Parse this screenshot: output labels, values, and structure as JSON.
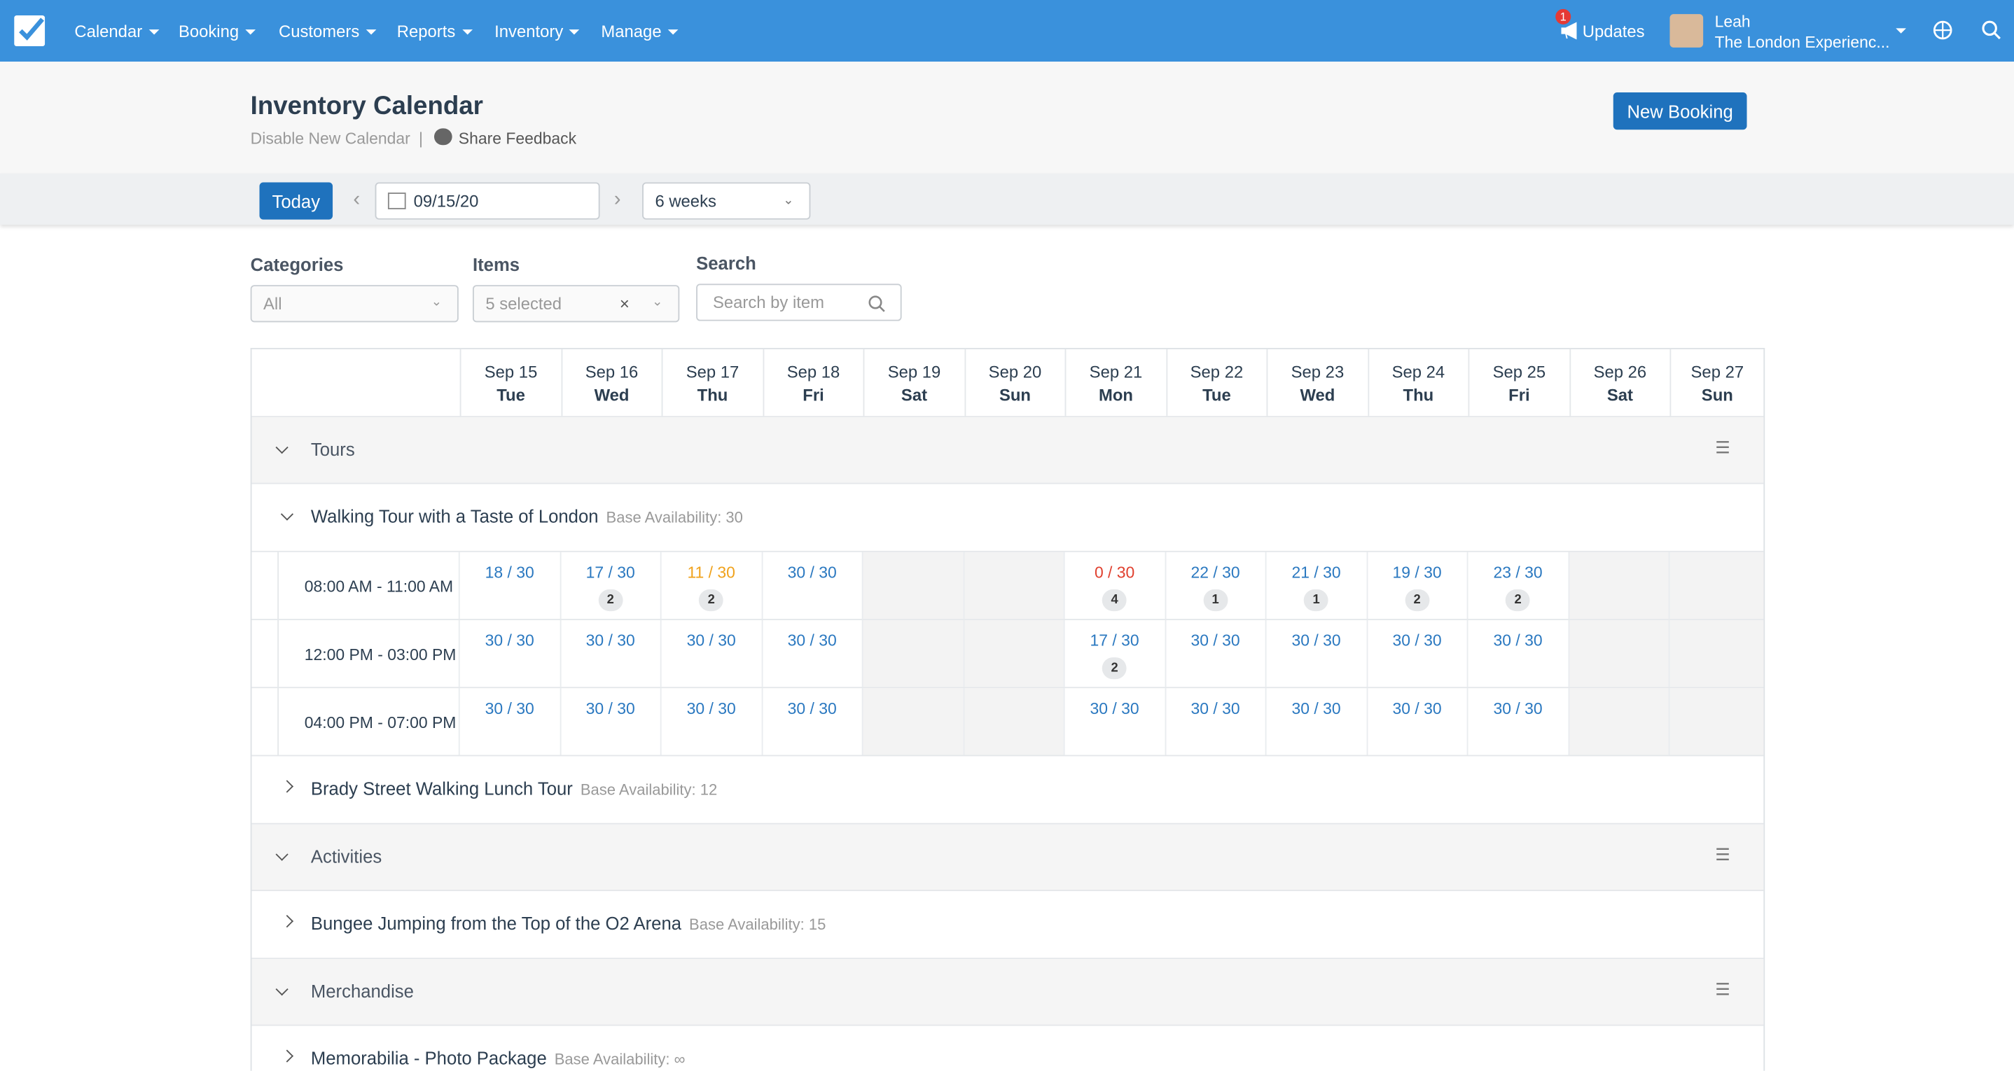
{
  "nav": {
    "menu": [
      "Calendar",
      "Booking",
      "Customers",
      "Reports",
      "Inventory",
      "Manage"
    ],
    "updates_badge": "1",
    "updates": "Updates",
    "user_name": "Leah",
    "user_company": "The London Experienc..."
  },
  "header": {
    "title": "Inventory Calendar",
    "disable": "Disable New Calendar",
    "separator": "|",
    "feedback": "Share Feedback",
    "new_booking": "New Booking"
  },
  "toolbar": {
    "today": "Today",
    "date": "09/15/20",
    "range": "6 weeks"
  },
  "filters": {
    "categories_label": "Categories",
    "categories_value": "All",
    "items_label": "Items",
    "items_value": "5 selected",
    "search_label": "Search",
    "search_placeholder": "Search by item"
  },
  "days": [
    {
      "date": "Sep 15",
      "weekday": "Tue"
    },
    {
      "date": "Sep 16",
      "weekday": "Wed"
    },
    {
      "date": "Sep 17",
      "weekday": "Thu"
    },
    {
      "date": "Sep 18",
      "weekday": "Fri"
    },
    {
      "date": "Sep 19",
      "weekday": "Sat"
    },
    {
      "date": "Sep 20",
      "weekday": "Sun"
    },
    {
      "date": "Sep 21",
      "weekday": "Mon"
    },
    {
      "date": "Sep 22",
      "weekday": "Tue"
    },
    {
      "date": "Sep 23",
      "weekday": "Wed"
    },
    {
      "date": "Sep 24",
      "weekday": "Thu"
    },
    {
      "date": "Sep 25",
      "weekday": "Fri"
    },
    {
      "date": "Sep 26",
      "weekday": "Sat"
    },
    {
      "date": "Sep 27",
      "weekday": "Sun"
    }
  ],
  "groups": [
    {
      "name": "Tours",
      "items": [
        {
          "name": "Walking Tour with a Taste of London",
          "base": "Base Availability: 30",
          "slots": [
            {
              "time": "08:00 AM - 11:00 AM",
              "cells": [
                {
                  "text": "18 / 30"
                },
                {
                  "text": "17 / 30",
                  "badge": "2"
                },
                {
                  "text": "11 / 30",
                  "badge": "2",
                  "color": "#f0a21c"
                },
                {
                  "text": "30 / 30"
                },
                null,
                null,
                {
                  "text": "0 / 30",
                  "badge": "4",
                  "color": "#e0402f"
                },
                {
                  "text": "22 / 30",
                  "badge": "1"
                },
                {
                  "text": "21 / 30",
                  "badge": "1"
                },
                {
                  "text": "19 / 30",
                  "badge": "2"
                },
                {
                  "text": "23 / 30",
                  "badge": "2"
                },
                null,
                null
              ]
            },
            {
              "time": "12:00 PM - 03:00 PM",
              "cells": [
                {
                  "text": "30 / 30"
                },
                {
                  "text": "30 / 30"
                },
                {
                  "text": "30 / 30"
                },
                {
                  "text": "30 / 30"
                },
                null,
                null,
                {
                  "text": "17 / 30",
                  "badge": "2"
                },
                {
                  "text": "30 / 30"
                },
                {
                  "text": "30 / 30"
                },
                {
                  "text": "30 / 30"
                },
                {
                  "text": "30 / 30"
                },
                null,
                null
              ]
            },
            {
              "time": "04:00 PM - 07:00 PM",
              "cells": [
                {
                  "text": "30 / 30"
                },
                {
                  "text": "30 / 30"
                },
                {
                  "text": "30 / 30"
                },
                {
                  "text": "30 / 30"
                },
                null,
                null,
                {
                  "text": "30 / 30"
                },
                {
                  "text": "30 / 30"
                },
                {
                  "text": "30 / 30"
                },
                {
                  "text": "30 / 30"
                },
                {
                  "text": "30 / 30"
                },
                null,
                null
              ]
            }
          ]
        },
        {
          "name": "Brady Street Walking Lunch Tour",
          "base": "Base Availability: 12"
        }
      ]
    },
    {
      "name": "Activities",
      "items": [
        {
          "name": "Bungee Jumping from the Top of the O2 Arena",
          "base": "Base Availability: 15"
        }
      ]
    },
    {
      "name": "Merchandise",
      "items": [
        {
          "name": "Memorabilia - Photo Package",
          "base": "Base Availability: ∞"
        }
      ]
    }
  ]
}
